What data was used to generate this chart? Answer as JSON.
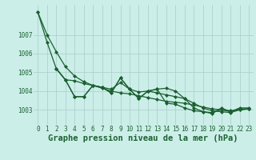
{
  "background_color": "#cceee8",
  "grid_color": "#aacccc",
  "line_color": "#1a6030",
  "marker_color": "#1a6030",
  "ylim": [
    1002.2,
    1008.6
  ],
  "xlim": [
    -0.5,
    23.5
  ],
  "yticks": [
    1003,
    1004,
    1005,
    1006,
    1007
  ],
  "xticks": [
    0,
    1,
    2,
    3,
    4,
    5,
    6,
    7,
    8,
    9,
    10,
    11,
    12,
    13,
    14,
    15,
    16,
    17,
    18,
    19,
    20,
    21,
    22,
    23
  ],
  "xlabel": "Graphe pression niveau de la mer (hPa)",
  "series1": {
    "x": [
      0,
      1,
      2,
      3,
      4,
      5,
      6,
      7,
      8,
      9,
      10,
      11,
      12,
      13,
      14,
      15,
      16,
      17,
      18,
      19,
      20,
      21,
      22,
      23
    ],
    "y": [
      1008.2,
      1006.6,
      1005.2,
      1004.6,
      1003.7,
      1003.7,
      1004.3,
      1004.2,
      1003.9,
      1004.7,
      1004.1,
      1003.6,
      1004.0,
      1004.1,
      1004.15,
      1004.0,
      1003.6,
      1003.1,
      1002.9,
      1002.8,
      1003.1,
      1002.9,
      1003.1,
      1003.1
    ]
  },
  "series2": {
    "x": [
      0,
      1,
      2,
      3,
      4,
      5,
      6,
      7,
      8,
      9,
      10,
      11,
      12,
      13,
      14,
      15,
      16,
      17,
      18,
      19,
      20,
      21,
      22,
      23
    ],
    "y": [
      1008.2,
      1007.0,
      1006.1,
      1005.3,
      1004.8,
      1004.5,
      1004.3,
      1004.15,
      1004.0,
      1003.9,
      1003.85,
      1003.75,
      1003.65,
      1003.55,
      1003.45,
      1003.4,
      1003.35,
      1003.25,
      1003.15,
      1003.05,
      1003.0,
      1002.95,
      1003.0,
      1003.05
    ]
  },
  "series3": {
    "x": [
      2,
      3,
      4,
      5,
      6,
      7,
      8,
      9,
      10,
      11,
      12,
      13,
      14,
      15,
      16,
      17,
      18,
      19,
      20,
      21,
      22,
      23
    ],
    "y": [
      1005.2,
      1004.6,
      1004.55,
      1004.4,
      1004.3,
      1004.2,
      1004.1,
      1004.45,
      1004.1,
      1003.95,
      1004.0,
      1003.9,
      1003.8,
      1003.7,
      1003.6,
      1003.35,
      1003.1,
      1002.95,
      1002.9,
      1002.85,
      1003.0,
      1003.05
    ]
  },
  "series4": {
    "x": [
      2,
      3,
      4,
      5,
      6,
      7,
      8,
      9,
      10,
      11,
      12,
      13,
      14,
      15,
      16,
      17,
      18,
      19,
      20,
      21,
      22,
      23
    ],
    "y": [
      1005.2,
      1004.6,
      1003.7,
      1003.7,
      1004.3,
      1004.2,
      1003.9,
      1004.7,
      1004.1,
      1003.6,
      1004.0,
      1004.1,
      1003.35,
      1003.3,
      1003.1,
      1002.95,
      1002.9,
      1002.85,
      1003.0,
      1002.9,
      1003.05,
      1003.05
    ]
  },
  "font_family": "monospace",
  "tick_fontsize": 5.5,
  "label_fontsize": 7.5,
  "label_fontweight": "bold"
}
